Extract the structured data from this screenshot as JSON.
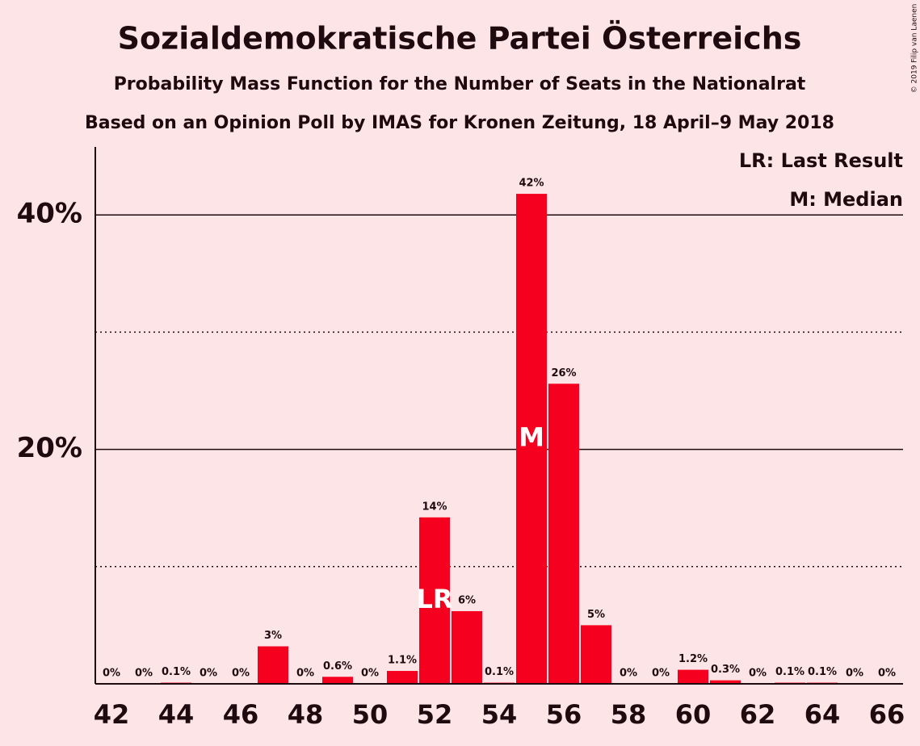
{
  "chart_data": {
    "type": "bar",
    "title": "Sozialdemokratische Partei Österreichs",
    "subtitle": "Probability Mass Function for the Number of Seats in the Nationalrat",
    "subtitle2": "Based on an Opinion Poll by IMAS for Kronen Zeitung, 18 April–9 May 2018",
    "copyright": "© 2019 Filip van Laenen",
    "legend_entries": [
      "LR: Last Result",
      "M: Median"
    ],
    "x": [
      42,
      43,
      44,
      45,
      46,
      47,
      48,
      49,
      50,
      51,
      52,
      53,
      54,
      55,
      56,
      57,
      58,
      59,
      60,
      61,
      62,
      63,
      64,
      65,
      66
    ],
    "values": [
      0,
      0,
      0.1,
      0,
      0,
      3.2,
      0,
      0.6,
      0,
      1.1,
      14.2,
      6.2,
      0.1,
      41.8,
      25.6,
      5.0,
      0,
      0,
      1.2,
      0.3,
      0,
      0.1,
      0.1,
      0,
      0
    ],
    "value_labels": [
      "0%",
      "0%",
      "0.1%",
      "0%",
      "0%",
      "3%",
      "0%",
      "0.6%",
      "0%",
      "1.1%",
      "14%",
      "6%",
      "0.1%",
      "42%",
      "26%",
      "5%",
      "0%",
      "0%",
      "1.2%",
      "0.3%",
      "0%",
      "0.1%",
      "0.1%",
      "0%",
      "0%"
    ],
    "color": "#f5001e",
    "annotations": [
      {
        "x": 52,
        "text": "LR"
      },
      {
        "x": 55,
        "text": "M"
      }
    ],
    "xlim": [
      41.5,
      66.5
    ],
    "xticks": [
      42,
      44,
      46,
      48,
      50,
      52,
      54,
      56,
      58,
      60,
      62,
      64,
      66
    ],
    "ylim": [
      0,
      45.8
    ],
    "yticks": [
      {
        "value": 20,
        "label": "20%"
      },
      {
        "value": 40,
        "label": "40%"
      }
    ],
    "minor_grid": [
      10,
      30
    ],
    "grid": true
  }
}
